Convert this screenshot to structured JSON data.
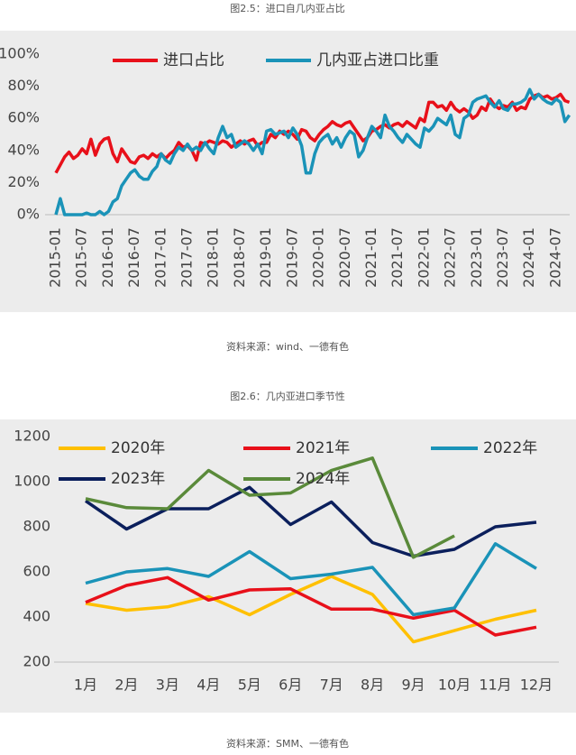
{
  "chart_data": [
    {
      "type": "line",
      "title": "图2.5：进口自几内亚占比",
      "source": "资料来源：wind、一德有色",
      "categories": [
        "2015-01",
        null,
        null,
        null,
        null,
        null,
        "2015-07",
        null,
        null,
        null,
        null,
        null,
        "2016-01",
        null,
        null,
        null,
        null,
        null,
        "2016-07",
        null,
        null,
        null,
        null,
        null,
        "2017-01",
        null,
        null,
        null,
        null,
        null,
        "2017-07",
        null,
        null,
        null,
        null,
        null,
        "2018-01",
        null,
        null,
        null,
        null,
        null,
        "2018-07",
        null,
        null,
        null,
        null,
        null,
        "2019-01",
        null,
        null,
        null,
        null,
        null,
        "2019-07",
        null,
        null,
        null,
        null,
        null,
        "2020-01",
        null,
        null,
        null,
        null,
        null,
        "2020-07",
        null,
        null,
        null,
        null,
        null,
        "2021-01",
        null,
        null,
        null,
        null,
        null,
        "2021-07",
        null,
        null,
        null,
        null,
        null,
        "2022-01",
        null,
        null,
        null,
        null,
        null,
        "2022-07",
        null,
        null,
        null,
        null,
        null,
        "2023-01",
        null,
        null,
        null,
        null,
        null,
        "2023-07",
        null,
        null,
        null,
        null,
        null,
        "2024-01",
        null,
        null,
        null,
        null,
        null,
        "2024-07",
        null,
        null,
        null
      ],
      "series": [
        {
          "name": "进口占比",
          "color": "#e8101a",
          "values": [
            26,
            31,
            36,
            39,
            35,
            37,
            41,
            38,
            47,
            37,
            44,
            47,
            48,
            38,
            33,
            41,
            37,
            33,
            32,
            36,
            37,
            35,
            38,
            36,
            38,
            35,
            38,
            40,
            45,
            42,
            43,
            40,
            34,
            45,
            44,
            46,
            45,
            44,
            46,
            45,
            42,
            44,
            46,
            44,
            46,
            47,
            43,
            45,
            45,
            50,
            48,
            52,
            50,
            52,
            50,
            47,
            53,
            52,
            48,
            46,
            50,
            53,
            55,
            58,
            56,
            55,
            57,
            58,
            54,
            50,
            46,
            48,
            52,
            53,
            55,
            56,
            54,
            56,
            57,
            55,
            58,
            56,
            54,
            60,
            58,
            70,
            70,
            67,
            68,
            65,
            70,
            66,
            64,
            66,
            64,
            60,
            62,
            67,
            65,
            72,
            68,
            66,
            68,
            67,
            70,
            65,
            67,
            66,
            72,
            74,
            75,
            73,
            74,
            72,
            73,
            75,
            71,
            70
          ]
        },
        {
          "name": "几内亚占进口比重",
          "color": "#1a93b8",
          "values": [
            0,
            10,
            0,
            0,
            0,
            0,
            0,
            1,
            0,
            0,
            2,
            0,
            2,
            8,
            10,
            18,
            22,
            26,
            28,
            24,
            22,
            22,
            27,
            30,
            38,
            34,
            32,
            38,
            42,
            40,
            44,
            40,
            42,
            40,
            45,
            41,
            38,
            48,
            55,
            48,
            50,
            42,
            44,
            46,
            44,
            40,
            44,
            38,
            52,
            53,
            50,
            51,
            52,
            48,
            54,
            50,
            43,
            26,
            26,
            38,
            45,
            48,
            50,
            44,
            48,
            42,
            48,
            52,
            50,
            36,
            40,
            48,
            55,
            52,
            48,
            62,
            55,
            52,
            48,
            45,
            50,
            47,
            44,
            42,
            54,
            52,
            55,
            60,
            58,
            56,
            62,
            50,
            48,
            60,
            62,
            70,
            72,
            73,
            74,
            70,
            67,
            71,
            66,
            65,
            69,
            69,
            70,
            72,
            78,
            72,
            75,
            72,
            70,
            69,
            72,
            70,
            58,
            62
          ]
        }
      ],
      "ylim": [
        0,
        100
      ],
      "yticks": [
        {
          "value": 0,
          "label": "0%"
        },
        {
          "value": 20,
          "label": "20%"
        },
        {
          "value": 40,
          "label": "40%"
        },
        {
          "value": 60,
          "label": "60%"
        },
        {
          "value": 80,
          "label": "80%"
        },
        {
          "value": 100,
          "label": "100%"
        }
      ],
      "grid": false,
      "legend": "top"
    },
    {
      "type": "line",
      "title": "图2.6：几内亚进口季节性",
      "source": "资料来源：SMM、一德有色",
      "categories": [
        "1月",
        "2月",
        "3月",
        "4月",
        "5月",
        "6月",
        "7月",
        "8月",
        "9月",
        "10月",
        "11月",
        "12月"
      ],
      "series": [
        {
          "name": "2020年",
          "color": "#ffc000",
          "values": [
            460,
            430,
            445,
            490,
            410,
            500,
            580,
            500,
            290,
            340,
            390,
            430
          ]
        },
        {
          "name": "2021年",
          "color": "#e8101a",
          "values": [
            465,
            540,
            575,
            475,
            520,
            525,
            435,
            435,
            395,
            430,
            320,
            355
          ]
        },
        {
          "name": "2022年",
          "color": "#1a93b8",
          "values": [
            550,
            600,
            615,
            580,
            690,
            570,
            590,
            620,
            410,
            440,
            725,
            615
          ]
        },
        {
          "name": "2023年",
          "color": "#0b1f5c",
          "values": [
            915,
            790,
            880,
            880,
            975,
            810,
            910,
            730,
            670,
            700,
            800,
            820
          ]
        },
        {
          "name": "2024年",
          "color": "#5a8a3a",
          "values": [
            925,
            885,
            880,
            1050,
            940,
            950,
            1050,
            1105,
            665,
            760,
            null,
            null
          ]
        }
      ],
      "ylim": [
        200,
        1200
      ],
      "yticks": [
        200,
        400,
        600,
        800,
        1000,
        1200
      ],
      "grid": false,
      "legend": "top"
    }
  ]
}
